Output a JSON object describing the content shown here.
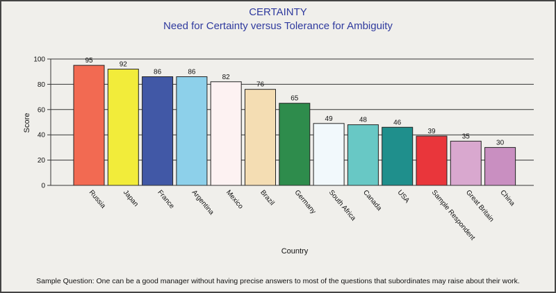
{
  "chart_data": {
    "type": "bar",
    "title": "CERTAINTY",
    "subtitle": "Need for Certainty versus Tolerance for Ambiguity",
    "xlabel": "Country",
    "ylabel": "Score",
    "ylim": [
      0,
      100
    ],
    "yticks": [
      0,
      20,
      40,
      60,
      80,
      100
    ],
    "grid": true,
    "categories": [
      "Russia",
      "Japan",
      "France",
      "Argentina",
      "Mexico",
      "Brazil",
      "Germany",
      "South Africa",
      "Canada",
      "USA",
      "Sample Respondent",
      "Great Britain",
      "China"
    ],
    "values": [
      95,
      92,
      86,
      86,
      82,
      76,
      65,
      49,
      48,
      46,
      39,
      35,
      30
    ],
    "colors": [
      "#f26a52",
      "#f2ec3a",
      "#4158a6",
      "#8dd0ea",
      "#fdf2f2",
      "#f4ddb3",
      "#2e8c4c",
      "#f2f9fc",
      "#68c8c5",
      "#1f8f8c",
      "#e9363b",
      "#d9a8cf",
      "#c98fc1"
    ]
  },
  "footer": "Sample Question: One can be a good manager without having precise answers to most of the questions that subordinates may raise about their work."
}
